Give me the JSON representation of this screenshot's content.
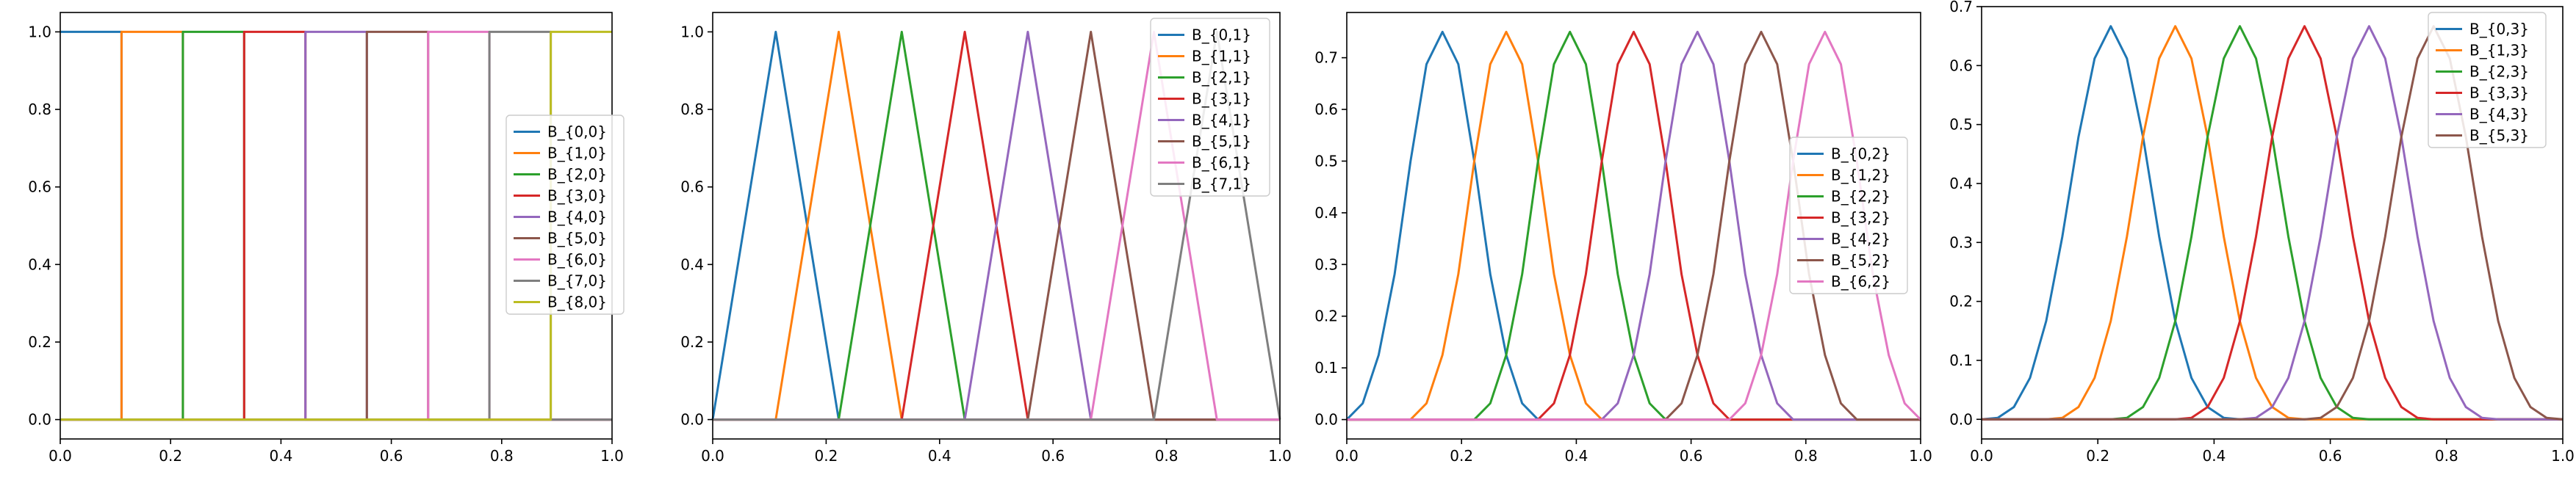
{
  "palette": [
    "#1f77b4",
    "#ff7f0e",
    "#2ca02c",
    "#d62728",
    "#9467bd",
    "#8c564b",
    "#e377c2",
    "#7f7f7f",
    "#bcbd22"
  ],
  "chart_data": [
    {
      "type": "line",
      "title": "",
      "xlabel": "",
      "ylabel": "",
      "xlim": [
        0,
        1
      ],
      "ylim": [
        -0.05,
        1.05
      ],
      "xticks": [
        "0.0",
        "0.2",
        "0.4",
        "0.6",
        "0.8",
        "1.0"
      ],
      "yticks": [
        "0.0",
        "0.2",
        "0.4",
        "0.6",
        "0.8",
        "1.0"
      ],
      "grid": false,
      "legend_position": "center-right",
      "degree": 0,
      "knot_spacing": 0.1111,
      "series": [
        {
          "name": "B_{0,0}",
          "x": [
            0.0,
            0.1111,
            0.1111,
            1.0
          ],
          "y": [
            1,
            1,
            0,
            0
          ]
        },
        {
          "name": "B_{1,0}",
          "x": [
            0.0,
            0.1111,
            0.1111,
            0.2222,
            0.2222,
            1.0
          ],
          "y": [
            0,
            0,
            1,
            1,
            0,
            0
          ]
        },
        {
          "name": "B_{2,0}",
          "x": [
            0.0,
            0.2222,
            0.2222,
            0.3333,
            0.3333,
            1.0
          ],
          "y": [
            0,
            0,
            1,
            1,
            0,
            0
          ]
        },
        {
          "name": "B_{3,0}",
          "x": [
            0.0,
            0.3333,
            0.3333,
            0.4444,
            0.4444,
            1.0
          ],
          "y": [
            0,
            0,
            1,
            1,
            0,
            0
          ]
        },
        {
          "name": "B_{4,0}",
          "x": [
            0.0,
            0.4444,
            0.4444,
            0.5556,
            0.5556,
            1.0
          ],
          "y": [
            0,
            0,
            1,
            1,
            0,
            0
          ]
        },
        {
          "name": "B_{5,0}",
          "x": [
            0.0,
            0.5556,
            0.5556,
            0.6667,
            0.6667,
            1.0
          ],
          "y": [
            0,
            0,
            1,
            1,
            0,
            0
          ]
        },
        {
          "name": "B_{6,0}",
          "x": [
            0.0,
            0.6667,
            0.6667,
            0.7778,
            0.7778,
            1.0
          ],
          "y": [
            0,
            0,
            1,
            1,
            0,
            0
          ]
        },
        {
          "name": "B_{7,0}",
          "x": [
            0.0,
            0.7778,
            0.7778,
            0.8889,
            0.8889,
            1.0
          ],
          "y": [
            0,
            0,
            1,
            1,
            0,
            0
          ]
        },
        {
          "name": "B_{8,0}",
          "x": [
            0.0,
            0.8889,
            0.8889,
            1.0
          ],
          "y": [
            0,
            0,
            1,
            1
          ]
        }
      ]
    },
    {
      "type": "line",
      "title": "",
      "xlabel": "",
      "ylabel": "",
      "xlim": [
        0,
        1
      ],
      "ylim": [
        -0.05,
        1.05
      ],
      "xticks": [
        "0.0",
        "0.2",
        "0.4",
        "0.6",
        "0.8",
        "1.0"
      ],
      "yticks": [
        "0.0",
        "0.2",
        "0.4",
        "0.6",
        "0.8",
        "1.0"
      ],
      "grid": false,
      "legend_position": "top-right",
      "degree": 1,
      "knot_spacing": 0.1111,
      "series": [
        {
          "name": "B_{0,1}",
          "x": [
            0.0,
            0.1111,
            0.2222,
            1.0
          ],
          "y": [
            0,
            1,
            0,
            0
          ]
        },
        {
          "name": "B_{1,1}",
          "x": [
            0.0,
            0.1111,
            0.2222,
            0.3333,
            1.0
          ],
          "y": [
            0,
            0,
            1,
            0,
            0
          ]
        },
        {
          "name": "B_{2,1}",
          "x": [
            0.0,
            0.2222,
            0.3333,
            0.4444,
            1.0
          ],
          "y": [
            0,
            0,
            1,
            0,
            0
          ]
        },
        {
          "name": "B_{3,1}",
          "x": [
            0.0,
            0.3333,
            0.4444,
            0.5556,
            1.0
          ],
          "y": [
            0,
            0,
            1,
            0,
            0
          ]
        },
        {
          "name": "B_{4,1}",
          "x": [
            0.0,
            0.4444,
            0.5556,
            0.6667,
            1.0
          ],
          "y": [
            0,
            0,
            1,
            0,
            0
          ]
        },
        {
          "name": "B_{5,1}",
          "x": [
            0.0,
            0.5556,
            0.6667,
            0.7778,
            1.0
          ],
          "y": [
            0,
            0,
            1,
            0,
            0
          ]
        },
        {
          "name": "B_{6,1}",
          "x": [
            0.0,
            0.6667,
            0.7778,
            0.8889,
            1.0
          ],
          "y": [
            0,
            0,
            1,
            0,
            0
          ]
        },
        {
          "name": "B_{7,1}",
          "x": [
            0.0,
            0.7778,
            0.8889,
            1.0
          ],
          "y": [
            0,
            0,
            1,
            0
          ]
        }
      ]
    },
    {
      "type": "line",
      "title": "",
      "xlabel": "",
      "ylabel": "",
      "xlim": [
        0,
        1
      ],
      "ylim": [
        -0.0375,
        0.7875
      ],
      "xticks": [
        "0.0",
        "0.2",
        "0.4",
        "0.6",
        "0.8",
        "1.0"
      ],
      "yticks": [
        "0.0",
        "0.1",
        "0.2",
        "0.3",
        "0.4",
        "0.5",
        "0.6",
        "0.7"
      ],
      "grid": false,
      "legend_position": "center-right",
      "degree": 2,
      "knot_spacing": 0.1111,
      "series": [
        {
          "name": "B_{0,2}",
          "x": [
            0.0,
            0.0278,
            0.0556,
            0.0833,
            0.1111,
            0.1389,
            0.1667,
            0.1944,
            0.2222,
            0.25,
            0.2778,
            0.3056,
            0.3333,
            1.0
          ],
          "y": [
            0,
            0.0313,
            0.125,
            0.2813,
            0.5,
            0.6875,
            0.75,
            0.6875,
            0.5,
            0.2813,
            0.125,
            0.0313,
            0,
            0
          ]
        },
        {
          "name": "B_{1,2}",
          "x": [
            0.0,
            0.1111,
            0.1389,
            0.1667,
            0.1944,
            0.2222,
            0.25,
            0.2778,
            0.3056,
            0.3333,
            0.3611,
            0.3889,
            0.4167,
            0.4444,
            1.0
          ],
          "y": [
            0,
            0,
            0.0313,
            0.125,
            0.2813,
            0.5,
            0.6875,
            0.75,
            0.6875,
            0.5,
            0.2813,
            0.125,
            0.0313,
            0,
            0
          ]
        },
        {
          "name": "B_{2,2}",
          "x": [
            0.0,
            0.2222,
            0.25,
            0.2778,
            0.3056,
            0.3333,
            0.3611,
            0.3889,
            0.4167,
            0.4444,
            0.4722,
            0.5,
            0.5278,
            0.5556,
            1.0
          ],
          "y": [
            0,
            0,
            0.0313,
            0.125,
            0.2813,
            0.5,
            0.6875,
            0.75,
            0.6875,
            0.5,
            0.2813,
            0.125,
            0.0313,
            0,
            0
          ]
        },
        {
          "name": "B_{3,2}",
          "x": [
            0.0,
            0.3333,
            0.3611,
            0.3889,
            0.4167,
            0.4444,
            0.4722,
            0.5,
            0.5278,
            0.5556,
            0.5833,
            0.6111,
            0.6389,
            0.6667,
            1.0
          ],
          "y": [
            0,
            0,
            0.0313,
            0.125,
            0.2813,
            0.5,
            0.6875,
            0.75,
            0.6875,
            0.5,
            0.2813,
            0.125,
            0.0313,
            0,
            0
          ]
        },
        {
          "name": "B_{4,2}",
          "x": [
            0.0,
            0.4444,
            0.4722,
            0.5,
            0.5278,
            0.5556,
            0.5833,
            0.6111,
            0.6389,
            0.6667,
            0.6944,
            0.7222,
            0.75,
            0.7778,
            1.0
          ],
          "y": [
            0,
            0,
            0.0313,
            0.125,
            0.2813,
            0.5,
            0.6875,
            0.75,
            0.6875,
            0.5,
            0.2813,
            0.125,
            0.0313,
            0,
            0
          ]
        },
        {
          "name": "B_{5,2}",
          "x": [
            0.0,
            0.5556,
            0.5833,
            0.6111,
            0.6389,
            0.6667,
            0.6944,
            0.7222,
            0.75,
            0.7778,
            0.8056,
            0.8333,
            0.8611,
            0.8889,
            1.0
          ],
          "y": [
            0,
            0,
            0.0313,
            0.125,
            0.2813,
            0.5,
            0.6875,
            0.75,
            0.6875,
            0.5,
            0.2813,
            0.125,
            0.0313,
            0,
            0
          ]
        },
        {
          "name": "B_{6,2}",
          "x": [
            0.0,
            0.6667,
            0.6944,
            0.7222,
            0.75,
            0.7778,
            0.8056,
            0.8333,
            0.8611,
            0.8889,
            0.9167,
            0.9444,
            0.9722,
            1.0
          ],
          "y": [
            0,
            0,
            0.0313,
            0.125,
            0.2813,
            0.5,
            0.6875,
            0.75,
            0.6875,
            0.5,
            0.2813,
            0.125,
            0.0313,
            0
          ]
        }
      ]
    },
    {
      "type": "line",
      "title": "",
      "xlabel": "",
      "ylabel": "",
      "xlim": [
        0,
        1
      ],
      "ylim": [
        -0.0333,
        0.7
      ],
      "xticks": [
        "0.0",
        "0.2",
        "0.4",
        "0.6",
        "0.8",
        "1.0"
      ],
      "yticks": [
        "0.0",
        "0.1",
        "0.2",
        "0.3",
        "0.4",
        "0.5",
        "0.6",
        "0.7"
      ],
      "grid": false,
      "legend_position": "top-right",
      "degree": 3,
      "knot_spacing": 0.1111,
      "series": [
        {
          "name": "B_{0,3}",
          "x": [
            0.0,
            0.0278,
            0.0556,
            0.0833,
            0.1111,
            0.1389,
            0.1667,
            0.1944,
            0.2222,
            0.25,
            0.2778,
            0.3056,
            0.3333,
            0.3611,
            0.3889,
            0.4167,
            0.4444,
            1.0
          ],
          "y": [
            0,
            0.0026,
            0.0208,
            0.0703,
            0.1667,
            0.3099,
            0.4792,
            0.612,
            0.6667,
            0.612,
            0.4792,
            0.3099,
            0.1667,
            0.0703,
            0.0208,
            0.0026,
            0,
            0
          ]
        },
        {
          "name": "B_{1,3}",
          "x": [
            0.0,
            0.1111,
            0.1389,
            0.1667,
            0.1944,
            0.2222,
            0.25,
            0.2778,
            0.3056,
            0.3333,
            0.3611,
            0.3889,
            0.4167,
            0.4444,
            0.4722,
            0.5,
            0.5278,
            0.5556,
            1.0
          ],
          "y": [
            0,
            0,
            0.0026,
            0.0208,
            0.0703,
            0.1667,
            0.3099,
            0.4792,
            0.612,
            0.6667,
            0.612,
            0.4792,
            0.3099,
            0.1667,
            0.0703,
            0.0208,
            0.0026,
            0,
            0
          ]
        },
        {
          "name": "B_{2,3}",
          "x": [
            0.0,
            0.2222,
            0.25,
            0.2778,
            0.3056,
            0.3333,
            0.3611,
            0.3889,
            0.4167,
            0.4444,
            0.4722,
            0.5,
            0.5278,
            0.5556,
            0.5833,
            0.6111,
            0.6389,
            0.6667,
            1.0
          ],
          "y": [
            0,
            0,
            0.0026,
            0.0208,
            0.0703,
            0.1667,
            0.3099,
            0.4792,
            0.612,
            0.6667,
            0.612,
            0.4792,
            0.3099,
            0.1667,
            0.0703,
            0.0208,
            0.0026,
            0,
            0
          ]
        },
        {
          "name": "B_{3,3}",
          "x": [
            0.0,
            0.3333,
            0.3611,
            0.3889,
            0.4167,
            0.4444,
            0.4722,
            0.5,
            0.5278,
            0.5556,
            0.5833,
            0.6111,
            0.6389,
            0.6667,
            0.6944,
            0.7222,
            0.75,
            0.7778,
            1.0
          ],
          "y": [
            0,
            0,
            0.0026,
            0.0208,
            0.0703,
            0.1667,
            0.3099,
            0.4792,
            0.612,
            0.6667,
            0.612,
            0.4792,
            0.3099,
            0.1667,
            0.0703,
            0.0208,
            0.0026,
            0,
            0
          ]
        },
        {
          "name": "B_{4,3}",
          "x": [
            0.0,
            0.4444,
            0.4722,
            0.5,
            0.5278,
            0.5556,
            0.5833,
            0.6111,
            0.6389,
            0.6667,
            0.6944,
            0.7222,
            0.75,
            0.7778,
            0.8056,
            0.8333,
            0.8611,
            0.8889,
            1.0
          ],
          "y": [
            0,
            0,
            0.0026,
            0.0208,
            0.0703,
            0.1667,
            0.3099,
            0.4792,
            0.612,
            0.6667,
            0.612,
            0.4792,
            0.3099,
            0.1667,
            0.0703,
            0.0208,
            0.0026,
            0,
            0
          ]
        },
        {
          "name": "B_{5,3}",
          "x": [
            0.0,
            0.5556,
            0.5833,
            0.6111,
            0.6389,
            0.6667,
            0.6944,
            0.7222,
            0.75,
            0.7778,
            0.8056,
            0.8333,
            0.8611,
            0.8889,
            0.9167,
            0.9444,
            0.9722,
            1.0
          ],
          "y": [
            0,
            0,
            0.0026,
            0.0208,
            0.0703,
            0.1667,
            0.3099,
            0.4792,
            0.612,
            0.6667,
            0.612,
            0.4792,
            0.3099,
            0.1667,
            0.0703,
            0.0208,
            0.0026,
            0
          ]
        }
      ]
    }
  ]
}
